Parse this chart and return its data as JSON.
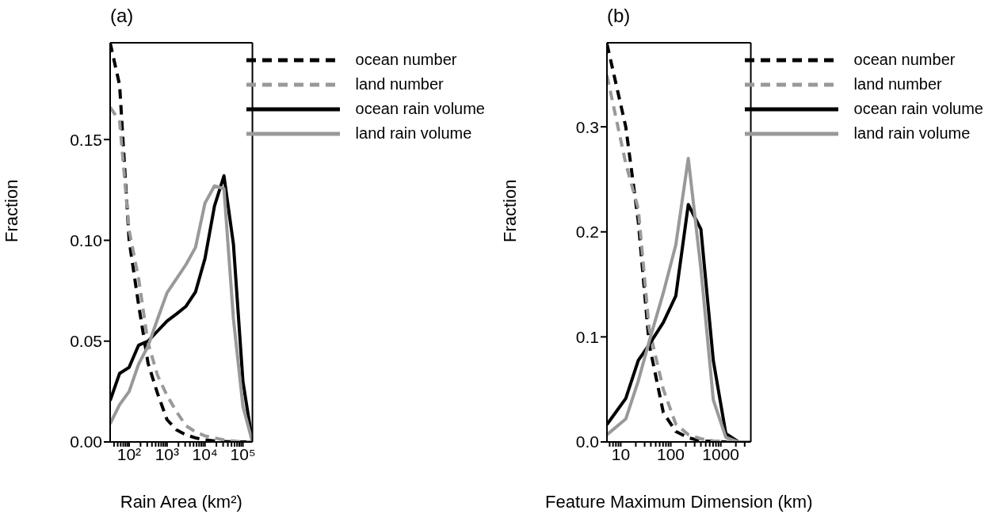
{
  "chart_data": [
    {
      "type": "line",
      "title": "(a)",
      "xlabel": "Rain Area (km²)",
      "ylabel": "Fraction",
      "log": "x",
      "legend": "top right",
      "grid": false,
      "x": [
        31.6,
        56.2,
        100,
        178,
        316,
        562,
        1000,
        1778,
        3162,
        5623,
        10000,
        17783,
        31623,
        56234,
        100000,
        177828
      ],
      "xlim": [
        31.6,
        177828
      ],
      "xticks": [
        {
          "value": 40,
          "label": null
        },
        {
          "value": 50,
          "label": null
        },
        {
          "value": 60,
          "label": null
        },
        {
          "value": 70,
          "label": null
        },
        {
          "value": 80,
          "label": null
        },
        {
          "value": 90,
          "label": null
        },
        {
          "value": 100,
          "label": "10²"
        },
        {
          "value": 200,
          "label": null
        },
        {
          "value": 300,
          "label": null
        },
        {
          "value": 400,
          "label": null
        },
        {
          "value": 500,
          "label": null
        },
        {
          "value": 600,
          "label": null
        },
        {
          "value": 700,
          "label": null
        },
        {
          "value": 800,
          "label": null
        },
        {
          "value": 900,
          "label": null
        },
        {
          "value": 1000,
          "label": "10³"
        },
        {
          "value": 2000,
          "label": null
        },
        {
          "value": 3000,
          "label": null
        },
        {
          "value": 4000,
          "label": null
        },
        {
          "value": 5000,
          "label": null
        },
        {
          "value": 6000,
          "label": null
        },
        {
          "value": 7000,
          "label": null
        },
        {
          "value": 8000,
          "label": null
        },
        {
          "value": 9000,
          "label": null
        },
        {
          "value": 10000,
          "label": "10⁴"
        },
        {
          "value": 20000,
          "label": null
        },
        {
          "value": 30000,
          "label": null
        },
        {
          "value": 40000,
          "label": null
        },
        {
          "value": 50000,
          "label": null
        },
        {
          "value": 60000,
          "label": null
        },
        {
          "value": 70000,
          "label": null
        },
        {
          "value": 80000,
          "label": null
        },
        {
          "value": 90000,
          "label": null
        },
        {
          "value": 100000,
          "label": "10⁵"
        }
      ],
      "ylim": [
        0,
        0.198
      ],
      "yticks": [
        {
          "value": 0,
          "label": "0.00"
        },
        {
          "value": 0.05,
          "label": "0.05"
        },
        {
          "value": 0.1,
          "label": "0.10"
        },
        {
          "value": 0.15,
          "label": "0.15"
        }
      ],
      "series": [
        {
          "name": "ocean number",
          "color": "#000000",
          "line_style": "dashed",
          "values": [
            0.198,
            0.177,
            0.1,
            0.068,
            0.039,
            0.024,
            0.011,
            0.006,
            0.0035,
            0.002,
            0.001,
            0.0005,
            0.0002,
            0,
            0,
            0
          ]
        },
        {
          "name": "land number",
          "color": "#999999",
          "line_style": "dashed",
          "values": [
            0.166,
            0.159,
            0.105,
            0.081,
            0.049,
            0.033,
            0.023,
            0.015,
            0.008,
            0.005,
            0.003,
            0.002,
            0.001,
            0.0005,
            0,
            0
          ]
        },
        {
          "name": "ocean rain volume",
          "color": "#000000",
          "line_style": "solid",
          "values": [
            0.0205,
            0.034,
            0.037,
            0.048,
            0.05,
            0.055,
            0.06,
            0.0635,
            0.0673,
            0.0744,
            0.091,
            0.117,
            0.132,
            0.098,
            0.03,
            0
          ]
        },
        {
          "name": "land rain volume",
          "color": "#999999",
          "line_style": "solid",
          "values": [
            0.009,
            0.0185,
            0.025,
            0.0386,
            0.0476,
            0.061,
            0.074,
            0.081,
            0.088,
            0.0965,
            0.1185,
            0.127,
            0.1256,
            0.061,
            0.0177,
            0
          ]
        }
      ]
    },
    {
      "type": "line",
      "title": "(b)",
      "xlabel": "Feature Maximum Dimension (km)",
      "ylabel": "Fraction",
      "log": "x",
      "legend": "top right",
      "grid": false,
      "x": [
        5.3,
        12.6,
        22.4,
        37,
        71,
        126,
        224,
        400,
        708,
        1260,
        2240,
        3980
      ],
      "xlim": [
        5.3,
        3980
      ],
      "xticks": [
        {
          "value": 6,
          "label": null
        },
        {
          "value": 7,
          "label": null
        },
        {
          "value": 8,
          "label": null
        },
        {
          "value": 9,
          "label": null
        },
        {
          "value": 10,
          "label": "10"
        },
        {
          "value": 20,
          "label": null
        },
        {
          "value": 30,
          "label": null
        },
        {
          "value": 40,
          "label": null
        },
        {
          "value": 50,
          "label": null
        },
        {
          "value": 60,
          "label": null
        },
        {
          "value": 70,
          "label": null
        },
        {
          "value": 80,
          "label": null
        },
        {
          "value": 90,
          "label": null
        },
        {
          "value": 100,
          "label": "100"
        },
        {
          "value": 200,
          "label": null
        },
        {
          "value": 300,
          "label": null
        },
        {
          "value": 400,
          "label": null
        },
        {
          "value": 500,
          "label": null
        },
        {
          "value": 600,
          "label": null
        },
        {
          "value": 700,
          "label": null
        },
        {
          "value": 800,
          "label": null
        },
        {
          "value": 900,
          "label": null
        },
        {
          "value": 1000,
          "label": "1000"
        },
        {
          "value": 2000,
          "label": null
        },
        {
          "value": 3000,
          "label": null
        }
      ],
      "ylim": [
        0,
        0.38
      ],
      "yticks": [
        {
          "value": 0,
          "label": "0.0"
        },
        {
          "value": 0.1,
          "label": "0.1"
        },
        {
          "value": 0.2,
          "label": "0.2"
        },
        {
          "value": 0.3,
          "label": "0.3"
        }
      ],
      "series": [
        {
          "name": "ocean number",
          "color": "#000000",
          "line_style": "dashed",
          "values": [
            0.379,
            0.3,
            0.21,
            0.093,
            0.028,
            0.01,
            0.004,
            0.001,
            0.0005,
            0,
            0,
            0
          ]
        },
        {
          "name": "land number",
          "color": "#999999",
          "line_style": "dashed",
          "values": [
            0.349,
            0.265,
            0.222,
            0.108,
            0.05,
            0.017,
            0.007,
            0.003,
            0.001,
            0.0005,
            0,
            0
          ]
        },
        {
          "name": "ocean rain volume",
          "color": "#000000",
          "line_style": "solid",
          "values": [
            0.0166,
            0.0414,
            0.0776,
            0.0926,
            0.1137,
            0.139,
            0.226,
            0.2026,
            0.0776,
            0.008,
            0,
            0
          ]
        },
        {
          "name": "land rain volume",
          "color": "#999999",
          "line_style": "solid",
          "values": [
            0.0068,
            0.0218,
            0.058,
            0.0956,
            0.142,
            0.1875,
            0.27,
            0.165,
            0.04,
            0.0045,
            0,
            0
          ]
        }
      ]
    }
  ]
}
